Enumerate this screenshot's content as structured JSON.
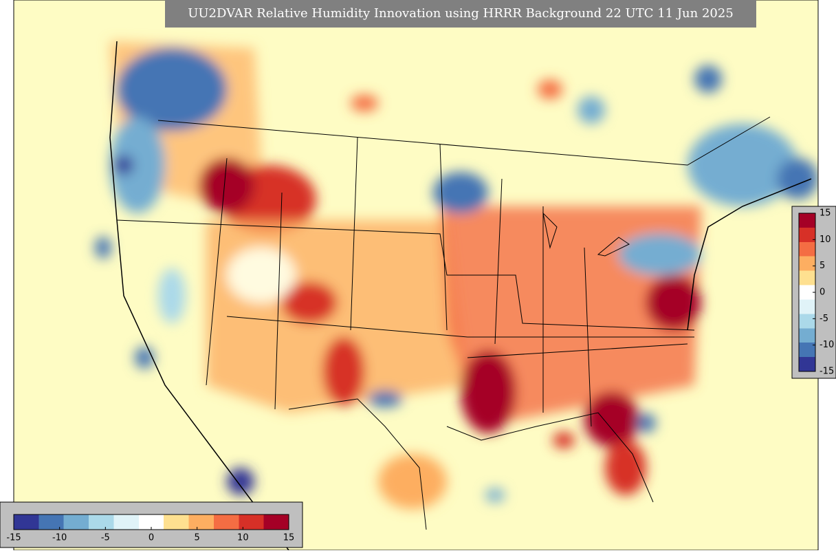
{
  "map": {
    "title": "UU2DVAR Relative Humidity Innovation using HRRR Background 22 UTC 11 Jun 2025",
    "colorbar": {
      "lim": [
        -15,
        15
      ],
      "ticks": [
        -15,
        -10,
        -5,
        0,
        5,
        10,
        15
      ],
      "colors": [
        "#313695",
        "#4575b4",
        "#74add1",
        "#abd9e9",
        "#e0f3f8",
        "#ffffff",
        "#fee090",
        "#fdae61",
        "#f46d43",
        "#d73027",
        "#a50026"
      ]
    }
  }
}
